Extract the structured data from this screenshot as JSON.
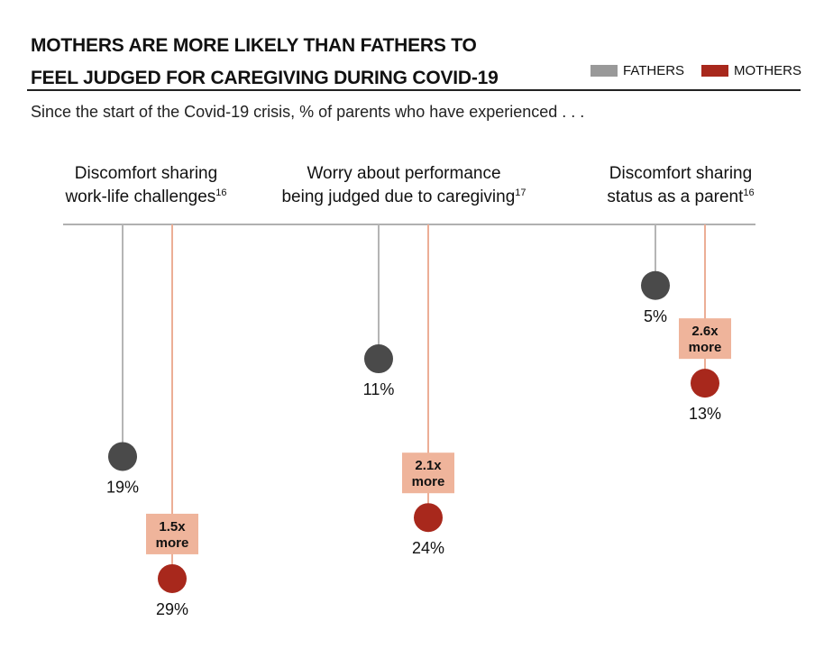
{
  "title_lines": [
    "MOTHERS ARE MORE LIKELY THAN FATHERS TO",
    "FEEL JUDGED FOR CAREGIVING DURING COVID-19"
  ],
  "subtitle": "Since the start of the Covid-19 crisis, % of parents who have experienced . . .",
  "legend": [
    {
      "label": "FATHERS",
      "color": "#999999"
    },
    {
      "label": "MOTHERS",
      "color": "#a8281c"
    }
  ],
  "chart_data": {
    "type": "scatter",
    "title": "MOTHERS ARE MORE LIKELY THAN FATHERS TO FEEL JUDGED FOR CAREGIVING DURING COVID-19",
    "ylabel": "",
    "legend_position": "top-right",
    "grid": false,
    "categories": [
      {
        "lines": [
          "Discomfort sharing",
          "work-life challenges"
        ],
        "footnote": "16"
      },
      {
        "lines": [
          "Worry about performance",
          "being judged due to caregiving"
        ],
        "footnote": "17"
      },
      {
        "lines": [
          "Discomfort sharing",
          "status as a parent"
        ],
        "footnote": "16"
      }
    ],
    "series": [
      {
        "name": "FATHERS",
        "values": [
          19,
          11,
          5
        ],
        "labels": [
          "19%",
          "11%",
          "5%"
        ]
      },
      {
        "name": "MOTHERS",
        "values": [
          29,
          24,
          13
        ],
        "labels": [
          "29%",
          "24%",
          "13%"
        ]
      }
    ],
    "ratios": [
      {
        "value": "1.5x",
        "text": "more"
      },
      {
        "value": "2.1x",
        "text": "more"
      },
      {
        "value": "2.6x",
        "text": "more"
      }
    ]
  },
  "colors": {
    "fathers_dot": "#4a4a4a",
    "fathers_line": "#b5b5b5",
    "mothers_dot": "#a8281c",
    "mothers_line": "#ecae96",
    "badge_fill": "#efb49b",
    "baseline": "#b0b0b0"
  }
}
